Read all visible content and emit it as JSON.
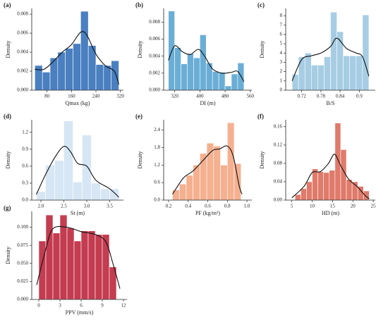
{
  "chart_data": [
    {
      "type": "histogram",
      "panel": "(a)",
      "xlabel": "Qmax (kg)",
      "ylabel": "Density",
      "color": "#4a7fc0",
      "bins": [
        40,
        65,
        90,
        115,
        140,
        165,
        190,
        215,
        240,
        265,
        290,
        315
      ],
      "counts": [
        0.0026,
        0.0019,
        0.0034,
        0.004,
        0.0044,
        0.0049,
        0.0083,
        0.0047,
        0.0027,
        0.0026,
        0.0031
      ],
      "curve": {
        "x": [
          40,
          70,
          100,
          130,
          160,
          190,
          210,
          240,
          270,
          300,
          315
        ],
        "y": [
          0.0022,
          0.0022,
          0.003,
          0.004,
          0.0048,
          0.0061,
          0.0058,
          0.0038,
          0.0026,
          0.002,
          0.0006
        ]
      },
      "xlim": [
        30,
        330
      ],
      "xticks": [
        80,
        160,
        240,
        320
      ],
      "ylim": [
        0,
        0.0086
      ],
      "yticks": [
        {
          "value": 0,
          "label": "0.000"
        },
        {
          "value": 0.002,
          "label": "0.002"
        },
        {
          "value": 0.004,
          "label": "0.004"
        },
        {
          "value": 0.006,
          "label": "0.006"
        },
        {
          "value": 0.008,
          "label": "0.008"
        }
      ]
    },
    {
      "type": "histogram",
      "panel": "(b)",
      "xlabel": "DI (m)",
      "ylabel": "Density",
      "color": "#6aaed6",
      "bins": [
        300,
        320,
        340,
        360,
        380,
        400,
        420,
        440,
        460,
        480,
        500,
        520,
        540
      ],
      "counts": [
        0.0093,
        0.005,
        0.0031,
        0.0043,
        0.0038,
        0.0065,
        0.0032,
        0.0022,
        0.0021,
        0.0005,
        0.0019,
        0.0032
      ],
      "curve": {
        "x": [
          300,
          320,
          345,
          370,
          395,
          415,
          440,
          470,
          500,
          520,
          540
        ],
        "y": [
          0.0035,
          0.0052,
          0.0045,
          0.0042,
          0.0048,
          0.004,
          0.0025,
          0.002,
          0.0021,
          0.0022,
          0.001
        ]
      },
      "xlim": [
        285,
        565
      ],
      "xticks": [
        320,
        400,
        480,
        560
      ],
      "ylim": [
        0,
        0.0096
      ],
      "yticks": [
        {
          "value": 0,
          "label": "0.000"
        },
        {
          "value": 0.002,
          "label": "0.002"
        },
        {
          "value": 0.004,
          "label": "0.004"
        },
        {
          "value": 0.006,
          "label": "0.006"
        },
        {
          "value": 0.008,
          "label": "0.008"
        }
      ]
    },
    {
      "type": "histogram",
      "panel": "(c)",
      "xlabel": "B/S",
      "ylabel": "Density",
      "color": "#a6cde3",
      "bins": [
        0.69,
        0.71,
        0.73,
        0.75,
        0.77,
        0.79,
        0.81,
        0.83,
        0.85,
        0.87,
        0.89,
        0.91,
        0.93
      ],
      "counts": [
        1.7,
        3.6,
        4.0,
        2.7,
        2.7,
        3.6,
        8.4,
        6.3,
        3.7,
        3.7,
        3.7,
        8.1
      ],
      "curve": {
        "x": [
          0.69,
          0.72,
          0.75,
          0.78,
          0.81,
          0.83,
          0.86,
          0.89,
          0.91,
          0.93
        ],
        "y": [
          1.0,
          3.3,
          3.7,
          4.0,
          4.7,
          5.6,
          4.5,
          4.0,
          3.6,
          1.5
        ]
      },
      "xlim": [
        0.67,
        0.95
      ],
      "xticks": [
        0.72,
        0.78,
        0.84,
        0.9
      ],
      "ylim": [
        0,
        8.8
      ],
      "yticks": [
        0,
        1,
        2,
        3,
        4,
        5,
        6,
        7,
        8
      ]
    },
    {
      "type": "histogram",
      "panel": "(d)",
      "xlabel": "St (m)",
      "ylabel": "Density",
      "color": "#d6e6f4",
      "bins": [
        1.9,
        2.1,
        2.3,
        2.5,
        2.7,
        2.9,
        3.1,
        3.3,
        3.5,
        3.7
      ],
      "counts": [
        0.15,
        0.62,
        0.7,
        1.4,
        0.32,
        1.15,
        0.3,
        0.2,
        0.2
      ],
      "curve": {
        "x": [
          1.9,
          2.1,
          2.3,
          2.5,
          2.65,
          2.8,
          3.0,
          3.2,
          3.5,
          3.7
        ],
        "y": [
          0.1,
          0.45,
          0.75,
          0.95,
          0.85,
          0.65,
          0.6,
          0.35,
          0.2,
          0.05
        ]
      },
      "xlim": [
        1.8,
        3.8
      ],
      "xticks": [
        {
          "value": 2,
          "label": "2.0"
        },
        2.5,
        {
          "value": 3,
          "label": "3.0"
        },
        3.5
      ],
      "ylim": [
        0,
        1.42
      ],
      "yticks": [
        {
          "value": 0,
          "label": "0.0"
        },
        0.3,
        0.6,
        0.9,
        1.2
      ]
    },
    {
      "type": "histogram",
      "panel": "(e)",
      "xlabel": "PF (kg/m³)",
      "ylabel": "Density",
      "color": "#f5b090",
      "bins": [
        0.24,
        0.31,
        0.38,
        0.45,
        0.52,
        0.59,
        0.66,
        0.73,
        0.8,
        0.87,
        0.94
      ],
      "counts": [
        0.35,
        0.55,
        0.85,
        1.2,
        1.6,
        1.95,
        1.85,
        1.2,
        2.65,
        1.25
      ],
      "curve": {
        "x": [
          0.24,
          0.35,
          0.45,
          0.55,
          0.65,
          0.72,
          0.8,
          0.86,
          0.92,
          0.95
        ],
        "y": [
          0.2,
          0.75,
          1.0,
          1.35,
          1.7,
          1.75,
          1.85,
          1.5,
          0.5,
          0.2
        ]
      },
      "xlim": [
        0.15,
        1.05
      ],
      "xticks": [
        0.2,
        0.4,
        0.6,
        0.8,
        {
          "value": 1,
          "label": "1.0"
        }
      ],
      "ylim": [
        0,
        2.75
      ],
      "yticks": [
        {
          "value": 0,
          "label": "0.0"
        },
        0.6,
        1.2,
        1.8,
        2.4
      ]
    },
    {
      "type": "histogram",
      "panel": "(f)",
      "xlabel": "HD (m)",
      "ylabel": "Density",
      "color": "#e07a6a",
      "bins": [
        5.8,
        7.2,
        8.6,
        10,
        11.4,
        12.8,
        14.2,
        15.6,
        17,
        18.4,
        19.8,
        21.2,
        22.6,
        24
      ],
      "counts": [
        0.012,
        0.025,
        0.04,
        0.068,
        0.062,
        0.06,
        0.065,
        0.168,
        0.11,
        0.045,
        0.04,
        0.03,
        0.02
      ],
      "curve": {
        "x": [
          5,
          8,
          10,
          12,
          14,
          15.5,
          17,
          19,
          21,
          23,
          24
        ],
        "y": [
          0.005,
          0.03,
          0.06,
          0.062,
          0.08,
          0.1,
          0.075,
          0.045,
          0.03,
          0.01,
          0.003
        ]
      },
      "xlim": [
        3.5,
        25.5
      ],
      "xticks": [
        5,
        10,
        15,
        20,
        25
      ],
      "ylim": [
        0,
        0.175
      ],
      "yticks": [
        {
          "value": 0,
          "label": "0.00"
        },
        0.04,
        0.08,
        0.12,
        0.16
      ]
    },
    {
      "type": "histogram",
      "panel": "(g)",
      "xlabel": "PPV (mm/s)",
      "ylabel": "Density",
      "color": "#c43c50",
      "bins": [
        0,
        1,
        2,
        3,
        4,
        5,
        6,
        7,
        8,
        9,
        10,
        11
      ],
      "counts": [
        0.081,
        0.117,
        0.092,
        0.117,
        0.099,
        0.081,
        0.095,
        0.095,
        0.09,
        0.09,
        0.045
      ],
      "curve": {
        "x": [
          -0.3,
          1,
          2,
          4,
          6,
          8,
          9.5,
          10.5,
          11.5
        ],
        "y": [
          0.02,
          0.07,
          0.098,
          0.1,
          0.094,
          0.09,
          0.08,
          0.05,
          0.015
        ]
      },
      "xlim": [
        -1,
        12.5
      ],
      "xticks": [
        0,
        3,
        6,
        9,
        12
      ],
      "ylim": [
        0,
        0.122
      ],
      "yticks": [
        {
          "value": 0,
          "label": "0.000"
        },
        {
          "value": 0.025,
          "label": "0.025"
        },
        {
          "value": 0.05,
          "label": "0.050"
        },
        {
          "value": 0.075,
          "label": "0.075"
        },
        {
          "value": 0.1,
          "label": "0.100"
        }
      ]
    }
  ]
}
